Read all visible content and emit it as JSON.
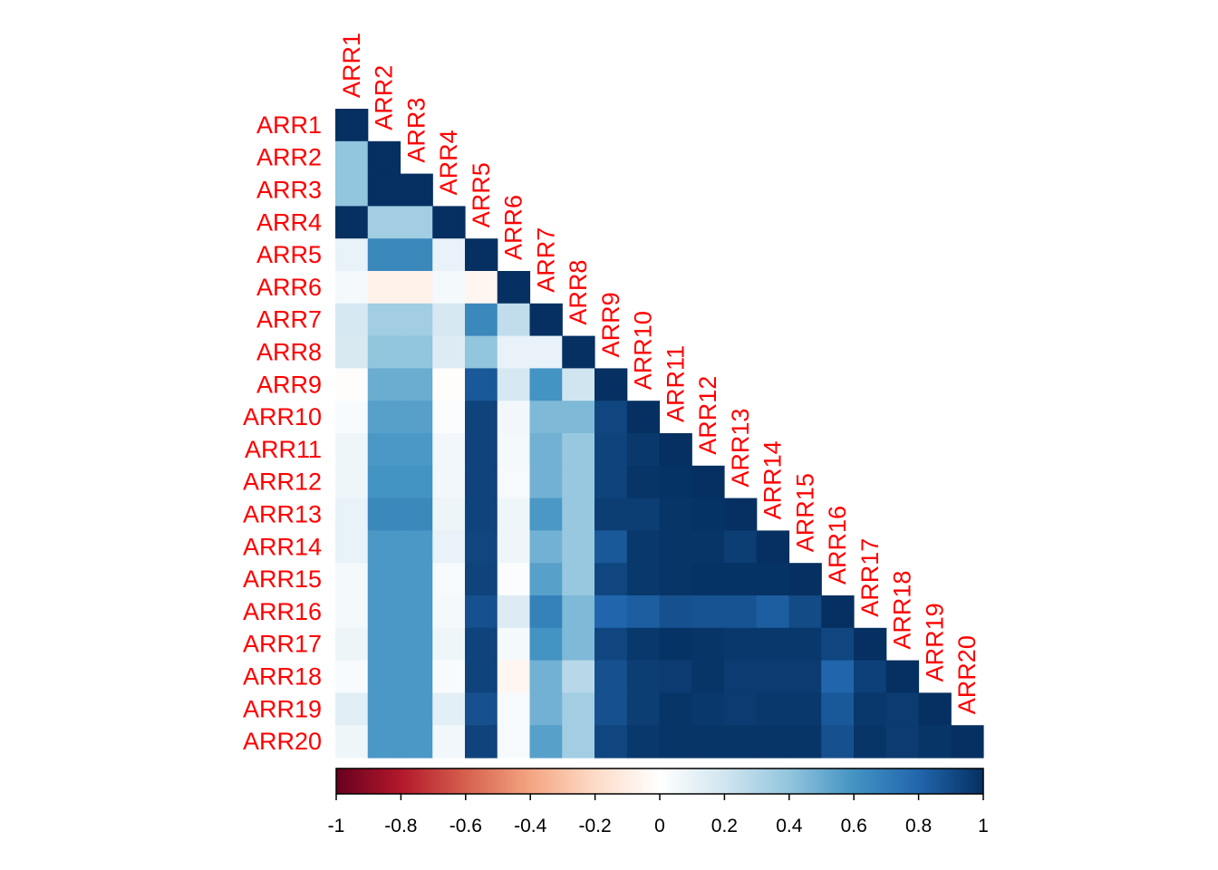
{
  "chart_data": {
    "type": "heatmap",
    "variables": [
      "ARR1",
      "ARR2",
      "ARR3",
      "ARR4",
      "ARR5",
      "ARR6",
      "ARR7",
      "ARR8",
      "ARR9",
      "ARR10",
      "ARR11",
      "ARR12",
      "ARR13",
      "ARR14",
      "ARR15",
      "ARR16",
      "ARR17",
      "ARR18",
      "ARR19",
      "ARR20"
    ],
    "triangle": "lower",
    "matrix": [
      [
        1.0
      ],
      [
        0.4,
        1.0
      ],
      [
        0.4,
        1.0,
        1.0
      ],
      [
        1.0,
        0.35,
        0.35,
        1.0
      ],
      [
        0.1,
        0.65,
        0.65,
        0.1,
        1.0
      ],
      [
        0.05,
        -0.07,
        -0.07,
        0.05,
        -0.05,
        1.0
      ],
      [
        0.18,
        0.35,
        0.35,
        0.18,
        0.65,
        0.25,
        1.0
      ],
      [
        0.17,
        0.4,
        0.4,
        0.15,
        0.4,
        0.1,
        0.1,
        1.0
      ],
      [
        -0.01,
        0.5,
        0.5,
        -0.01,
        0.85,
        0.18,
        0.6,
        0.2,
        1.0
      ],
      [
        0.03,
        0.55,
        0.55,
        0.02,
        0.93,
        0.06,
        0.45,
        0.45,
        0.92,
        1.0
      ],
      [
        0.07,
        0.58,
        0.58,
        0.06,
        0.93,
        0.05,
        0.48,
        0.38,
        0.93,
        0.97,
        1.0
      ],
      [
        0.07,
        0.6,
        0.6,
        0.06,
        0.93,
        0.04,
        0.48,
        0.38,
        0.93,
        0.98,
        0.99,
        1.0
      ],
      [
        0.1,
        0.65,
        0.65,
        0.08,
        0.93,
        0.07,
        0.58,
        0.38,
        0.95,
        0.95,
        0.98,
        0.99,
        1.0
      ],
      [
        0.1,
        0.58,
        0.58,
        0.1,
        0.92,
        0.07,
        0.48,
        0.38,
        0.85,
        0.97,
        0.98,
        0.98,
        0.95,
        1.0
      ],
      [
        0.05,
        0.58,
        0.58,
        0.04,
        0.93,
        0.02,
        0.55,
        0.38,
        0.92,
        0.97,
        0.98,
        0.99,
        0.99,
        0.99,
        1.0
      ],
      [
        0.05,
        0.58,
        0.58,
        0.05,
        0.88,
        0.15,
        0.68,
        0.45,
        0.8,
        0.83,
        0.88,
        0.87,
        0.87,
        0.83,
        0.9,
        1.0
      ],
      [
        0.08,
        0.58,
        0.58,
        0.07,
        0.93,
        0.05,
        0.6,
        0.45,
        0.92,
        0.97,
        0.99,
        0.98,
        0.97,
        0.97,
        0.97,
        0.92,
        1.0
      ],
      [
        0.03,
        0.58,
        0.58,
        0.03,
        0.93,
        -0.05,
        0.48,
        0.28,
        0.88,
        0.95,
        0.96,
        0.98,
        0.96,
        0.96,
        0.96,
        0.8,
        0.94,
        1.0
      ],
      [
        0.13,
        0.58,
        0.58,
        0.12,
        0.88,
        0.04,
        0.48,
        0.35,
        0.88,
        0.95,
        0.98,
        0.97,
        0.96,
        0.97,
        0.97,
        0.85,
        0.97,
        0.96,
        1.0
      ],
      [
        0.07,
        0.58,
        0.58,
        0.06,
        0.93,
        0.04,
        0.55,
        0.35,
        0.92,
        0.97,
        0.98,
        0.98,
        0.98,
        0.98,
        0.98,
        0.88,
        0.98,
        0.96,
        0.98,
        1.0
      ]
    ],
    "colorbar": {
      "range": [
        -1,
        1
      ],
      "ticks": [
        "-1",
        "-0.8",
        "-0.6",
        "-0.4",
        "-0.2",
        "0",
        "0.2",
        "0.4",
        "0.6",
        "0.8",
        "1"
      ],
      "palette": [
        "#67001F",
        "#B2182B",
        "#D6604D",
        "#F4A582",
        "#FDDBC7",
        "#FFFFFF",
        "#D1E5F0",
        "#92C5DE",
        "#4393C3",
        "#2166AC",
        "#053061"
      ]
    },
    "label_color": "#FF0000"
  }
}
